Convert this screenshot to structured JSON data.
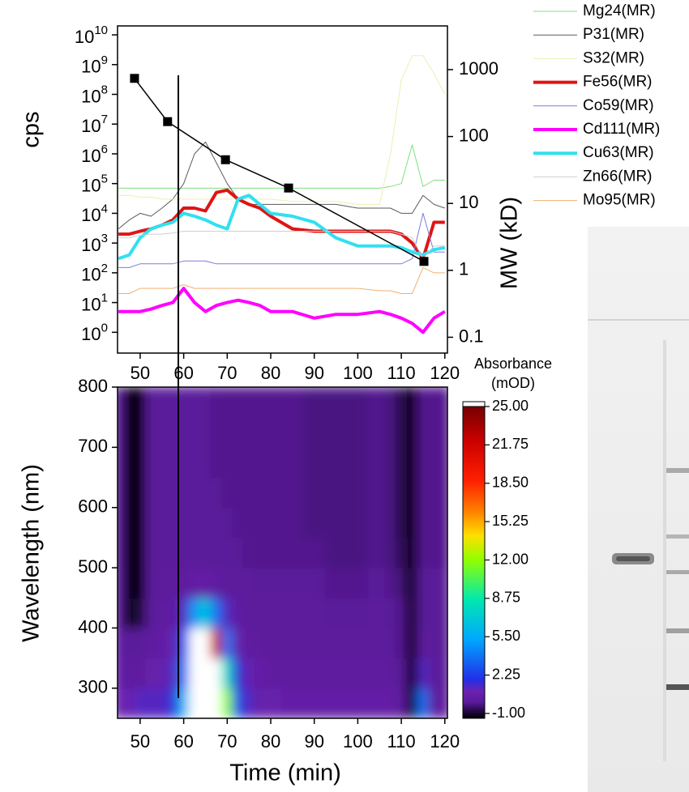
{
  "chart_data": [
    {
      "type": "line",
      "ylabel": "cps",
      "y2label": "MW (kD)",
      "x": [
        45,
        47.5,
        50,
        52.5,
        55,
        57.5,
        60,
        62.5,
        65,
        67.5,
        70,
        72.5,
        75,
        77.5,
        80,
        85,
        90,
        95,
        100,
        105,
        107.5,
        110,
        112.5,
        115,
        117.5,
        120
      ],
      "xlim": [
        44.8,
        120.6
      ],
      "xticks": [
        50,
        60,
        70,
        80,
        90,
        100,
        110,
        120
      ],
      "yscale": "log",
      "ylim": [
        0.2,
        20000000000
      ],
      "yticks": [
        {
          "value": 1,
          "label": "10^0"
        },
        {
          "value": 10,
          "label": "10^1"
        },
        {
          "value": 100,
          "label": "10^2"
        },
        {
          "value": 1000,
          "label": "10^3"
        },
        {
          "value": 10000,
          "label": "10^4"
        },
        {
          "value": 100000,
          "label": "10^5"
        },
        {
          "value": 1000000,
          "label": "10^6"
        },
        {
          "value": 10000000,
          "label": "10^7"
        },
        {
          "value": 100000000,
          "label": "10^8"
        },
        {
          "value": 1000000000,
          "label": "10^9"
        },
        {
          "value": 10000000000,
          "label": "10^10"
        }
      ],
      "y2scale": "log",
      "y2lim": [
        0.058,
        4500
      ],
      "y2ticks": [
        0.1,
        1,
        10,
        100,
        1000
      ],
      "legend": "right",
      "series": [
        {
          "name": "Mg24(MR)",
          "color": "#7ee07e",
          "width": 1,
          "values": [
            70000,
            70000,
            70000,
            70000,
            70000,
            70000,
            70000,
            70000,
            70000,
            70000,
            70000,
            70000,
            70000,
            70000,
            70000,
            70000,
            70000,
            70000,
            70000,
            70000,
            80000,
            100000,
            2000000,
            80000,
            130000,
            130000
          ]
        },
        {
          "name": "P31(MR)",
          "color": "#5a5a5a",
          "width": 1,
          "values": [
            3000,
            6000,
            10000,
            8000,
            15000,
            30000,
            100000,
            1000000,
            2500000,
            500000,
            100000,
            30000,
            20000,
            20000,
            20000,
            20000,
            20000,
            20000,
            15000,
            15000,
            15000,
            10000,
            10000,
            40000,
            20000,
            15000
          ]
        },
        {
          "name": "S32(MR)",
          "color": "#eeeeb0",
          "width": 1,
          "values": [
            40000,
            40000,
            35000,
            35000,
            30000,
            30000,
            30000,
            30000,
            30000,
            30000,
            30000,
            30000,
            30000,
            30000,
            30000,
            25000,
            25000,
            25000,
            20000,
            20000,
            1000000,
            300000000,
            2000000000,
            2000000000,
            500000000,
            100000000
          ]
        },
        {
          "name": "Fe56(MR)",
          "color": "#e01414",
          "width": 4,
          "values": [
            2000,
            2000,
            2500,
            3000,
            4000,
            6000,
            15000,
            15000,
            12000,
            50000,
            60000,
            30000,
            20000,
            15000,
            8000,
            3000,
            2500,
            2500,
            2500,
            2500,
            2500,
            2000,
            1000,
            300,
            5000,
            5000
          ]
        },
        {
          "name": "Co59(MR)",
          "color": "#7c7ce0",
          "width": 1,
          "values": [
            150,
            150,
            200,
            200,
            200,
            200,
            250,
            250,
            250,
            200,
            200,
            200,
            200,
            200,
            200,
            200,
            200,
            200,
            200,
            200,
            200,
            200,
            300,
            10000,
            500,
            500
          ]
        },
        {
          "name": "Cd111(MR)",
          "color": "#ff00ff",
          "width": 4,
          "values": [
            5,
            5,
            5,
            6,
            8,
            10,
            30,
            10,
            5,
            8,
            10,
            12,
            10,
            8,
            5,
            5,
            3,
            4,
            4,
            5,
            4,
            3,
            2,
            1,
            3,
            5
          ]
        },
        {
          "name": "Cu63(MR)",
          "color": "#30e0f0",
          "width": 4,
          "values": [
            300,
            400,
            1500,
            3000,
            4000,
            5000,
            10000,
            8000,
            6000,
            4000,
            3000,
            30000,
            40000,
            20000,
            10000,
            8000,
            5000,
            1500,
            800,
            800,
            800,
            700,
            500,
            400,
            600,
            700
          ]
        },
        {
          "name": "Zn66(MR)",
          "color": "#cfcfcf",
          "width": 1,
          "values": [
            1500,
            1500,
            1800,
            2000,
            2000,
            2200,
            2500,
            2500,
            2500,
            2500,
            2500,
            2500,
            2500,
            2500,
            2500,
            2500,
            2500,
            2500,
            2500,
            2500,
            2500,
            2000,
            1500,
            300,
            800,
            800
          ]
        },
        {
          "name": "Mo95(MR)",
          "color": "#f0b070",
          "width": 1,
          "values": [
            20,
            20,
            30,
            30,
            30,
            30,
            40,
            30,
            30,
            30,
            30,
            30,
            30,
            30,
            30,
            30,
            30,
            30,
            30,
            25,
            25,
            20,
            20,
            150,
            100,
            100
          ]
        },
        {
          "axis": "y2",
          "color": "#000000",
          "width": 1.5,
          "marker": "square",
          "x": [
            48.7,
            56.3,
            69.6,
            84.1,
            115.2
          ],
          "values": [
            740,
            167,
            45,
            17,
            1.36
          ]
        }
      ]
    },
    {
      "type": "heatmap",
      "xlabel": "Time (min)",
      "ylabel": "Wavelength (nm)",
      "x": [
        45,
        47.5,
        50,
        52.5,
        55,
        57.5,
        60,
        62.5,
        65,
        67.5,
        70,
        72.5,
        75,
        77.5,
        80,
        85,
        90,
        95,
        100,
        105,
        107.5,
        110,
        112.5,
        115,
        117.5,
        120
      ],
      "y": [
        275,
        325,
        375,
        425,
        475,
        525,
        575,
        625,
        675,
        725,
        775
      ],
      "z": [
        [
          1.2,
          1.2,
          1.5,
          1.5,
          1.5,
          2,
          6,
          35,
          40,
          35,
          12,
          3,
          1.5,
          1,
          1,
          0.8,
          0.8,
          0.8,
          0.8,
          0.8,
          0.8,
          0.5,
          -1,
          4,
          0.5,
          0.5
        ],
        [
          0.8,
          0.5,
          0.5,
          1,
          1,
          1.5,
          4,
          30,
          40,
          30,
          8,
          2,
          1,
          0.8,
          0.6,
          0.5,
          0.5,
          0.5,
          0.5,
          0.5,
          0.5,
          0.3,
          -1,
          1.5,
          0.4,
          0.4
        ],
        [
          0.5,
          0.3,
          0.3,
          0.6,
          0.7,
          1,
          3,
          25,
          35,
          22,
          4,
          1,
          0.6,
          0.5,
          0.4,
          0.4,
          0.4,
          0.4,
          0.4,
          0.4,
          0.4,
          0.2,
          -1,
          0.5,
          0.3,
          0.3
        ],
        [
          0.4,
          -1,
          -0.5,
          0.4,
          0.5,
          0.6,
          1.5,
          5,
          7,
          4,
          1.5,
          0.6,
          0.4,
          0.4,
          0.4,
          0.4,
          0.4,
          0.3,
          0.3,
          0.4,
          0.3,
          0.2,
          -1,
          0.3,
          0.3,
          0.3
        ],
        [
          0.4,
          -1,
          -1,
          0.3,
          0.4,
          0.4,
          0.5,
          0.8,
          0.8,
          0.6,
          0.4,
          0.4,
          0.4,
          0.3,
          0.3,
          0.3,
          0.3,
          0.2,
          0.2,
          0.3,
          0.2,
          0,
          -1,
          0.3,
          0.3,
          0.3
        ],
        [
          0.3,
          -1,
          -1,
          0.3,
          0.3,
          0.3,
          0.3,
          0.3,
          0.3,
          0.3,
          0.3,
          0.3,
          0.2,
          0.2,
          0.2,
          0.2,
          0.2,
          0.1,
          0.1,
          0.2,
          0.1,
          -0.2,
          -1,
          0.2,
          0.2,
          0.2
        ],
        [
          0.3,
          -1,
          -1,
          0.3,
          0.3,
          0.3,
          0.3,
          0.3,
          0.3,
          0.3,
          0.3,
          0.2,
          0.2,
          0.2,
          0.2,
          0.2,
          0.1,
          0.1,
          0.1,
          0.2,
          0.1,
          -0.3,
          -1,
          0.2,
          0.2,
          0.2
        ],
        [
          0.3,
          -1,
          -1,
          0.3,
          0.3,
          0.3,
          0.3,
          0.3,
          0.3,
          0.3,
          0.2,
          0.2,
          0.2,
          0.2,
          0.2,
          0.2,
          0.1,
          0.1,
          0.1,
          0.2,
          0.1,
          -0.3,
          -1,
          0.2,
          0.2,
          0.2
        ],
        [
          0.3,
          -1,
          -1,
          0.3,
          0.3,
          0.3,
          0.3,
          0.3,
          0.3,
          0.2,
          0.2,
          0.2,
          0.2,
          0.2,
          0.2,
          0.2,
          0.1,
          0.1,
          0.1,
          0.2,
          0.1,
          -0.3,
          -1,
          0.2,
          0.2,
          0.2
        ],
        [
          0.3,
          -1,
          -1,
          0.3,
          0.3,
          0.3,
          0.3,
          0.3,
          0.3,
          0.2,
          0.2,
          0.2,
          0.2,
          0.2,
          0.2,
          0.2,
          0.1,
          0.1,
          0.1,
          0.2,
          0.1,
          -0.3,
          -1,
          0.2,
          0.2,
          0.2
        ],
        [
          0.3,
          -1,
          -1,
          0.3,
          0.3,
          0.3,
          0.3,
          0.3,
          0.3,
          0.2,
          0.2,
          0.2,
          0.2,
          0.2,
          0.2,
          0.2,
          0.1,
          0.1,
          0.1,
          0.2,
          0.1,
          -0.3,
          -1,
          0.2,
          0.2,
          0.2
        ]
      ],
      "xlim": [
        44.8,
        120.6
      ],
      "xticks": [
        50,
        60,
        70,
        80,
        90,
        100,
        110,
        120
      ],
      "ylim": [
        250,
        800
      ],
      "yticks": [
        300,
        400,
        500,
        600,
        700,
        800
      ],
      "colorbar": {
        "label": [
          "Absorbance",
          "(mOD)"
        ],
        "ticks": [
          {
            "value": -1,
            "label": "-1.00"
          },
          {
            "value": 2.25,
            "label": "2.25"
          },
          {
            "value": 5.5,
            "label": "5.50"
          },
          {
            "value": 8.75,
            "label": "8.75"
          },
          {
            "value": 12,
            "label": "12.00"
          },
          {
            "value": 15.25,
            "label": "15.25"
          },
          {
            "value": 18.5,
            "label": "18.50"
          },
          {
            "value": 21.75,
            "label": "21.75"
          },
          {
            "value": 25,
            "label": "25.00"
          }
        ],
        "colorscale": [
          [
            -1,
            "#000000"
          ],
          [
            -0.3,
            "#2a0a50"
          ],
          [
            0.3,
            "#5a1a9a"
          ],
          [
            1.2,
            "#6a22b0"
          ],
          [
            2.25,
            "#2030e8"
          ],
          [
            5.5,
            "#00a8ff"
          ],
          [
            8.75,
            "#00e8b0"
          ],
          [
            12,
            "#90ff00"
          ],
          [
            14,
            "#ffe000"
          ],
          [
            16,
            "#ff8000"
          ],
          [
            18.5,
            "#ff2000"
          ],
          [
            21.75,
            "#cc0000"
          ],
          [
            24.8,
            "#700000"
          ],
          [
            25,
            "#ffffff"
          ]
        ]
      }
    }
  ]
}
